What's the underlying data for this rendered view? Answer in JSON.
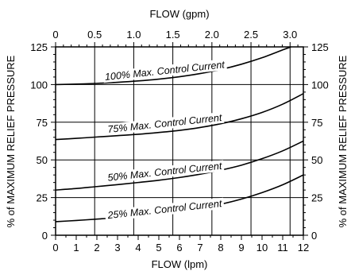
{
  "chart_data": {
    "type": "line",
    "title": "",
    "xlabel": "FLOW (lpm)",
    "x2label": "FLOW (gpm)",
    "ylabel": "% of MAXIMUM RELIEF PRESSURE",
    "y2label": "% of MAXIMUM RELIEF PRESSURE",
    "xlim": [
      0,
      12
    ],
    "ylim": [
      0,
      125
    ],
    "x2lim": [
      0,
      3.17
    ],
    "grid": true,
    "legend": "none",
    "x_ticks": [
      0,
      1,
      2,
      3,
      4,
      5,
      6,
      7,
      8,
      9,
      10,
      11,
      12
    ],
    "x2_ticks": [
      0,
      0.5,
      1.0,
      1.5,
      2.0,
      2.5,
      3.0
    ],
    "x2_tick_labels": [
      "0",
      "0.5",
      "1.0",
      "1.5",
      "2.0",
      "2.5",
      "3.0"
    ],
    "y_ticks": [
      0,
      25,
      50,
      75,
      100,
      125
    ],
    "series": [
      {
        "name": "100% Max. Control Current",
        "x": [
          0,
          1,
          2,
          3,
          4,
          5,
          6,
          7,
          8,
          9,
          10,
          11,
          11.4
        ],
        "y": [
          100,
          100.3,
          100.8,
          101.5,
          102.4,
          103.6,
          105.2,
          107.3,
          110,
          113.5,
          117.8,
          123,
          125
        ]
      },
      {
        "name": "75% Max. Control Current",
        "x": [
          0,
          1,
          2,
          3,
          4,
          5,
          6,
          7,
          8,
          9,
          10,
          11,
          12
        ],
        "y": [
          63.5,
          64.3,
          65.2,
          66.1,
          67,
          68.2,
          69.6,
          71.5,
          74,
          77.3,
          81.5,
          87,
          94
        ]
      },
      {
        "name": "50% Max. Control Current",
        "x": [
          0,
          1,
          2,
          3,
          4,
          5,
          6,
          7,
          8,
          9,
          10,
          11,
          12
        ],
        "y": [
          30,
          31,
          32.3,
          33.6,
          35,
          36.5,
          38.3,
          40.5,
          43.2,
          46.5,
          50.8,
          56,
          62.5
        ]
      },
      {
        "name": "25% Max. Control Current",
        "x": [
          0,
          1,
          2,
          3,
          4,
          5,
          6,
          7,
          8,
          9,
          10,
          11,
          12
        ],
        "y": [
          9,
          9.8,
          10.7,
          11.7,
          12.8,
          14.2,
          15.9,
          18,
          20.6,
          24,
          28.3,
          33.5,
          40
        ]
      }
    ],
    "annotations": [
      {
        "text": "100% Max. Control Current",
        "x": 5.3,
        "y": 107
      },
      {
        "text": "75% Max. Control Current",
        "x": 5.3,
        "y": 72
      },
      {
        "text": "50% Max. Control Current",
        "x": 5.3,
        "y": 40
      },
      {
        "text": "25% Max. Control Current",
        "x": 5.3,
        "y": 15
      }
    ]
  }
}
